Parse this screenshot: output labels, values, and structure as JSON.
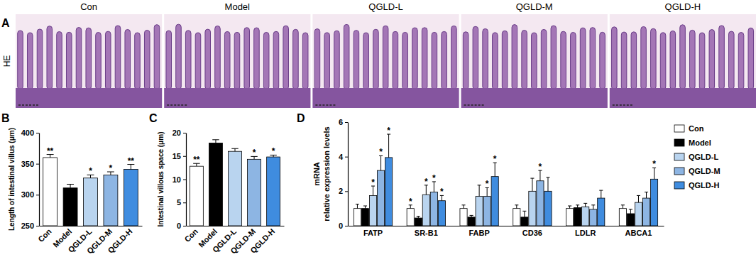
{
  "panel_a": {
    "label": "A",
    "stain": "HE",
    "groups": [
      "Con",
      "Model",
      "QGLD-L",
      "QGLD-M",
      "QGLD-H"
    ]
  },
  "chart_data": [
    {
      "type": "bar",
      "panel_label": "B",
      "y_label": "Length of intestinal villus (μm)",
      "categories": [
        "Con",
        "Model",
        "QGLD-L",
        "QGLD-M",
        "QGLD-H"
      ],
      "values": [
        360,
        311,
        327,
        332,
        341
      ],
      "errors": [
        5,
        6,
        5,
        5,
        8
      ],
      "significance": [
        "**",
        null,
        "*",
        "*",
        "**"
      ],
      "colors": [
        "#ffffff",
        "#000000",
        "#b9d4ef",
        "#8db5e3",
        "#3f8cdf"
      ],
      "ylim": [
        250,
        400
      ],
      "yticks": [
        250,
        300,
        350,
        400
      ]
    },
    {
      "type": "bar",
      "panel_label": "C",
      "y_label": "Intestinal villous space (μm)",
      "categories": [
        "Con",
        "Model",
        "QGLD-L",
        "QGLD-M",
        "QGLD-H"
      ],
      "values": [
        12.8,
        17.8,
        16.0,
        14.3,
        14.8
      ],
      "errors": [
        0.6,
        0.7,
        0.6,
        0.6,
        0.4
      ],
      "significance": [
        "**",
        null,
        null,
        "*",
        "*"
      ],
      "colors": [
        "#ffffff",
        "#000000",
        "#b9d4ef",
        "#8db5e3",
        "#3f8cdf"
      ],
      "ylim": [
        0,
        20
      ],
      "yticks": [
        0,
        5,
        10,
        15,
        20
      ]
    },
    {
      "type": "bar",
      "panel_label": "D",
      "y_label": [
        "mRNA",
        "relative expression levels"
      ],
      "categories": [
        "FATP",
        "SR-B1",
        "FABP",
        "CD36",
        "LDLR",
        "ABCA1"
      ],
      "series": [
        {
          "name": "Con",
          "color": "#ffffff",
          "values": [
            1.0,
            1.0,
            1.0,
            1.0,
            1.0,
            1.0
          ],
          "errors": [
            0.25,
            0.2,
            0.2,
            0.2,
            0.15,
            0.2
          ],
          "significance": [
            null,
            "*",
            null,
            null,
            null,
            null
          ]
        },
        {
          "name": "Model",
          "color": "#000000",
          "values": [
            1.0,
            0.45,
            0.5,
            0.5,
            1.05,
            0.7
          ],
          "errors": [
            0.15,
            0.1,
            0.1,
            0.35,
            0.15,
            0.25
          ],
          "significance": [
            null,
            null,
            null,
            null,
            null,
            null
          ]
        },
        {
          "name": "QGLD-L",
          "color": "#b9d4ef",
          "values": [
            1.75,
            1.8,
            1.7,
            2.0,
            1.1,
            1.35
          ],
          "errors": [
            0.55,
            0.55,
            0.65,
            0.75,
            0.2,
            0.4
          ],
          "significance": [
            "*",
            "*",
            null,
            null,
            null,
            null
          ]
        },
        {
          "name": "QGLD-M",
          "color": "#8db5e3",
          "values": [
            3.2,
            1.95,
            1.7,
            2.6,
            0.95,
            1.6
          ],
          "errors": [
            0.85,
            0.6,
            0.5,
            0.6,
            0.25,
            0.35
          ],
          "significance": [
            "*",
            "*",
            "*",
            "*",
            null,
            null
          ]
        },
        {
          "name": "QGLD-H",
          "color": "#3f8cdf",
          "values": [
            3.95,
            1.45,
            2.85,
            2.0,
            1.6,
            2.7
          ],
          "errors": [
            1.35,
            0.3,
            0.8,
            0.8,
            0.45,
            0.65
          ],
          "significance": [
            "*",
            "*",
            "*",
            null,
            null,
            "*"
          ]
        }
      ],
      "ylim": [
        0,
        6
      ],
      "yticks": [
        0,
        2,
        4,
        6
      ],
      "legend": "right"
    }
  ]
}
